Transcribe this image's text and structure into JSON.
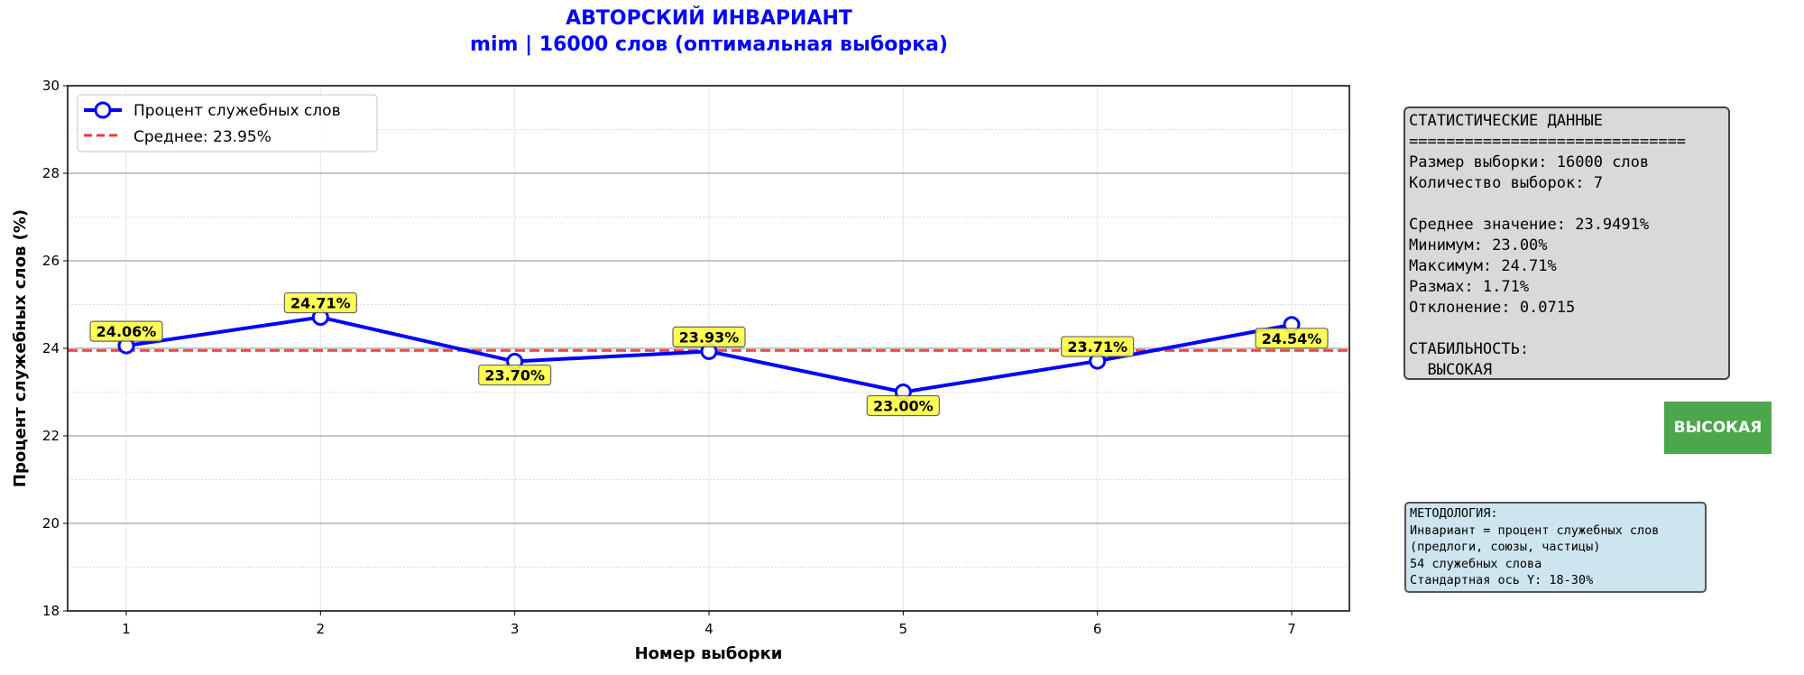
{
  "chart_data": {
    "type": "line",
    "title": "АВТОРСКИЙ ИНВАРИАНТ",
    "subtitle": "mim | 16000 слов (оптимальная выборка)",
    "xlabel": "Номер выборки",
    "ylabel": "Процент служебных слов (%)",
    "x": [
      1,
      2,
      3,
      4,
      5,
      6,
      7
    ],
    "xticks": [
      "1",
      "2",
      "3",
      "4",
      "5",
      "6",
      "7"
    ],
    "ylim": [
      18,
      30
    ],
    "yticks": [
      "18",
      "20",
      "22",
      "24",
      "26",
      "28",
      "30"
    ],
    "grid": true,
    "legend_position": "top-left",
    "series": [
      {
        "name": "Процент служебных слов",
        "color": "#0000ff",
        "values": [
          24.06,
          24.71,
          23.7,
          23.93,
          23.0,
          23.71,
          24.54
        ],
        "data_labels": [
          "24.06%",
          "24.71%",
          "23.70%",
          "23.93%",
          "23.00%",
          "23.71%",
          "24.54%"
        ]
      }
    ],
    "mean_line": {
      "name": "Среднее: 23.95%",
      "value": 23.95,
      "color": "#ff3333"
    },
    "label_color": "#ffff44"
  },
  "stats_box": {
    "text": "СТАТИСТИЧЕСКИЕ ДАННЫЕ\n==============================\nРазмер выборки: 16000 слов\nКоличество выборок: 7\n\nСреднее значение: 23.9491%\nМинимум: 23.00%\nМаксимум: 24.71%\nРазмах: 1.71%\nОтклонение: 0.0715\n\nСТАБИЛЬНОСТЬ:\n  ВЫСОКАЯ"
  },
  "stability_badge": {
    "label": "ВЫСОКАЯ",
    "color": "#4ca64c"
  },
  "methodology_box": {
    "text": "МЕТОДОЛОГИЯ:\nИнвариант = процент служебных слов\n(предлоги, союзы, частицы)\n54 служебных слова\nСтандартная ось Y: 18-30%"
  }
}
